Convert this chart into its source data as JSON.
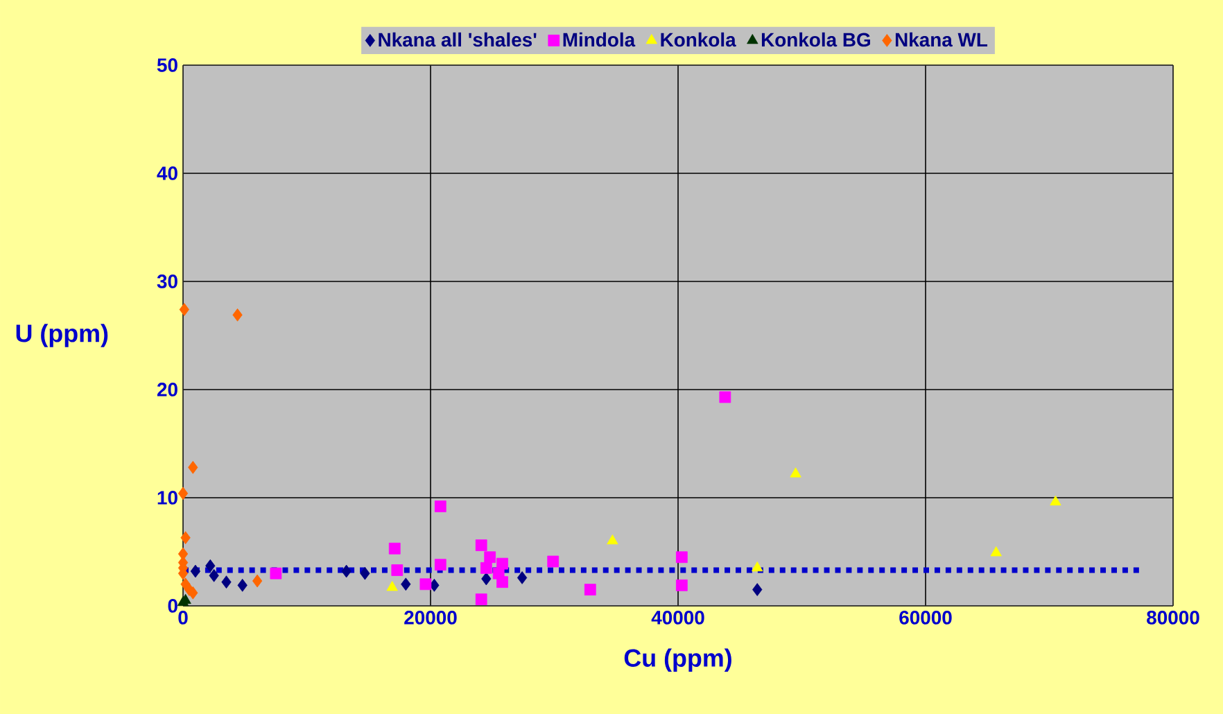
{
  "chart_data": {
    "type": "scatter",
    "xlabel": "Cu (ppm)",
    "ylabel": "U (ppm)",
    "xlim": [
      0,
      80000
    ],
    "ylim": [
      0,
      50
    ],
    "xticks": [
      0,
      20000,
      40000,
      60000,
      80000
    ],
    "yticks": [
      0,
      10,
      20,
      30,
      40,
      50
    ],
    "grid": true,
    "legend": "top",
    "series": [
      {
        "name": "Nkana all 'shales'",
        "color": "#000080",
        "marker": "diamond",
        "x": [
          1000,
          2200,
          2500,
          3500,
          4800,
          13200,
          14700,
          18000,
          20300,
          24500,
          27400,
          46400
        ],
        "values": [
          3.2,
          3.7,
          2.8,
          2.2,
          1.9,
          3.2,
          3,
          2,
          1.9,
          2.5,
          2.6,
          1.5
        ]
      },
      {
        "name": "Mindola",
        "color": "#ff00ff",
        "marker": "square",
        "x": [
          7500,
          17100,
          17300,
          19600,
          20800,
          20800,
          24100,
          24100,
          24500,
          24800,
          25500,
          25800,
          25800,
          29900,
          32900,
          40300,
          40300,
          43800
        ],
        "values": [
          3,
          5.3,
          3.3,
          2,
          3.8,
          9.2,
          5.6,
          0.6,
          3.5,
          4.5,
          3,
          3.9,
          2.2,
          4.1,
          1.5,
          4.5,
          1.9,
          19.3
        ]
      },
      {
        "name": "Konkola",
        "color": "#ffff00",
        "marker": "triangle",
        "x": [
          16900,
          34700,
          46400,
          49500,
          65700,
          70500
        ],
        "values": [
          1.7,
          6,
          3.5,
          12.2,
          4.9,
          9.6
        ]
      },
      {
        "name": "Konkola BG",
        "color": "#003300",
        "marker": "triangle",
        "x": [
          0,
          200
        ],
        "values": [
          0.3,
          0.5
        ]
      },
      {
        "name": "Nkana WL",
        "color": "#ff6600",
        "marker": "diamond",
        "x": [
          100,
          4400,
          800,
          0,
          200,
          0,
          0,
          0,
          0,
          200,
          500,
          800,
          6000
        ],
        "values": [
          27.4,
          26.9,
          12.8,
          10.4,
          6.3,
          4.8,
          4,
          3.5,
          3,
          2,
          1.5,
          1.2,
          2.3
        ]
      },
      {
        "type": "line",
        "color": "#0000cc",
        "line_style": "dotted",
        "marker": "none",
        "x": [
          0,
          77500
        ],
        "values": [
          3.3,
          3.3
        ]
      }
    ]
  }
}
